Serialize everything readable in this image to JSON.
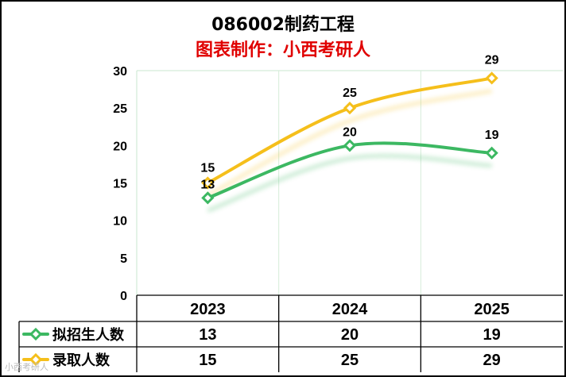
{
  "chart_data": {
    "type": "line",
    "title": "086002制药工程",
    "subtitle": "图表制作：小西考研人",
    "categories": [
      "2023",
      "2024",
      "2025"
    ],
    "ylim": [
      0,
      30
    ],
    "yticks": [
      0,
      5,
      10,
      15,
      20,
      25,
      30
    ],
    "grid": "vertical",
    "legend": "in data table",
    "series": [
      {
        "name": "拟招生人数",
        "color": "#3cb862",
        "values": [
          13,
          20,
          19
        ]
      },
      {
        "name": "录取人数",
        "color": "#f5bf1b",
        "values": [
          15,
          25,
          29
        ]
      }
    ]
  },
  "watermark": "小西考研人"
}
